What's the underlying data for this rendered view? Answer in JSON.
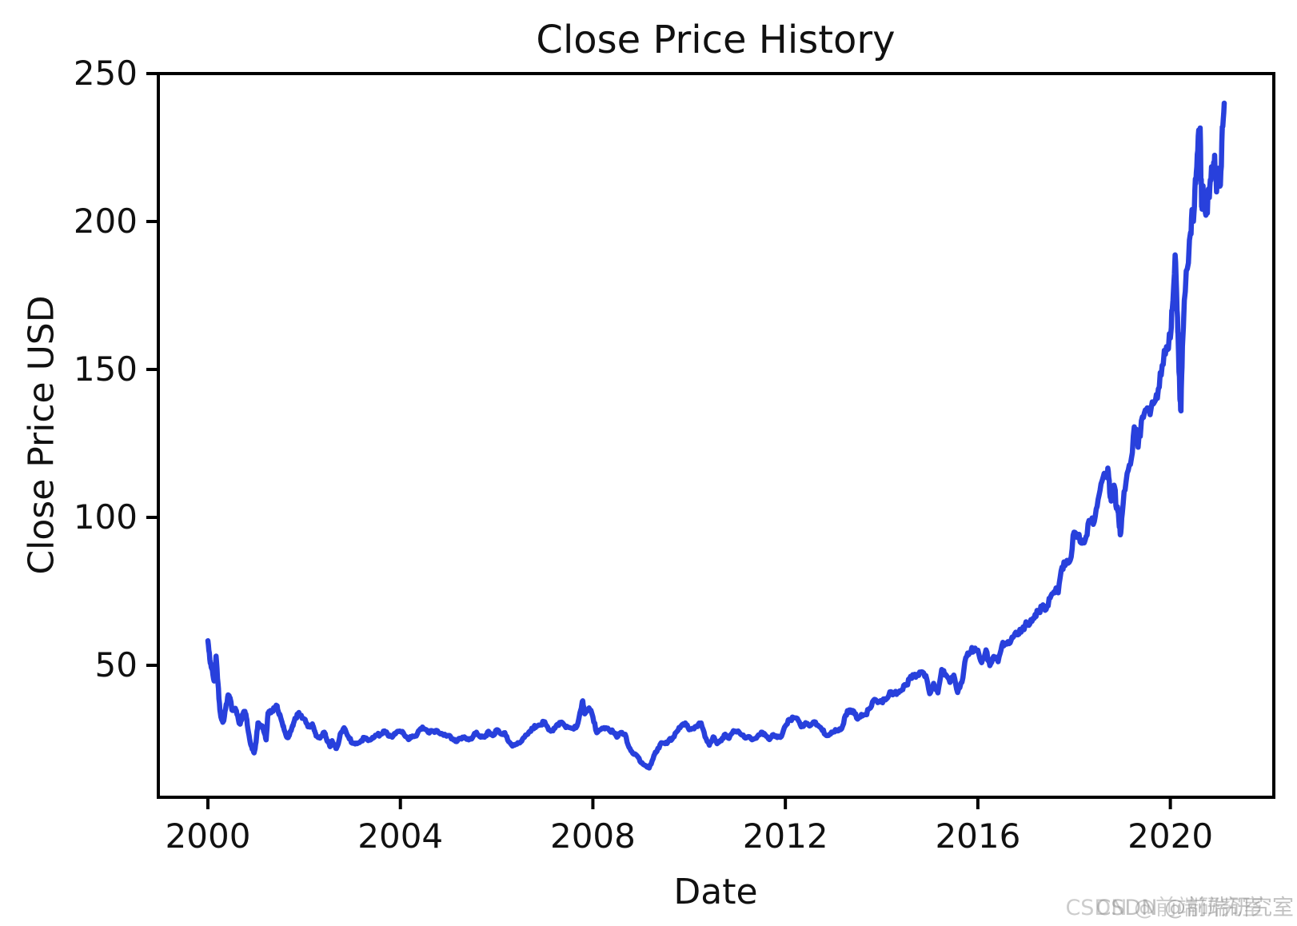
{
  "watermark": {
    "text": "CSDN @前端研究室"
  },
  "chart_data": {
    "type": "line",
    "title": "Close Price History",
    "xlabel": "Date",
    "ylabel": "Close Price USD",
    "x_ticks": [
      2000,
      2004,
      2008,
      2012,
      2016,
      2020
    ],
    "y_ticks": [
      50,
      100,
      150,
      200,
      250
    ],
    "xlim": [
      1998.97,
      2022.15
    ],
    "ylim": [
      5.4,
      250
    ],
    "grid": false,
    "legend": "none",
    "line_color": "#2840dc",
    "axis_color": "#000000",
    "series": [
      {
        "name": "Close Price USD",
        "x_unit": "decimal_year",
        "points": [
          [
            2000.0,
            58.3
          ],
          [
            2000.04,
            52.0
          ],
          [
            2000.08,
            48.9
          ],
          [
            2000.13,
            44.7
          ],
          [
            2000.17,
            53.1
          ],
          [
            2000.21,
            44.0
          ],
          [
            2000.25,
            34.9
          ],
          [
            2000.29,
            31.5
          ],
          [
            2000.33,
            31.3
          ],
          [
            2000.38,
            36.8
          ],
          [
            2000.42,
            40.0
          ],
          [
            2000.46,
            39.0
          ],
          [
            2000.5,
            34.9
          ],
          [
            2000.54,
            35.3
          ],
          [
            2000.58,
            34.9
          ],
          [
            2000.63,
            32.0
          ],
          [
            2000.67,
            30.1
          ],
          [
            2000.71,
            32.5
          ],
          [
            2000.75,
            34.4
          ],
          [
            2000.79,
            33.5
          ],
          [
            2000.83,
            28.7
          ],
          [
            2000.88,
            24.0
          ],
          [
            2000.92,
            21.7
          ],
          [
            2000.96,
            20.4
          ],
          [
            2001.0,
            24.0
          ],
          [
            2001.04,
            30.5
          ],
          [
            2001.08,
            29.4
          ],
          [
            2001.13,
            29.5
          ],
          [
            2001.17,
            27.3
          ],
          [
            2001.21,
            24.8
          ],
          [
            2001.25,
            33.9
          ],
          [
            2001.29,
            34.2
          ],
          [
            2001.33,
            34.6
          ],
          [
            2001.38,
            35.7
          ],
          [
            2001.42,
            36.5
          ],
          [
            2001.46,
            34.5
          ],
          [
            2001.5,
            33.1
          ],
          [
            2001.54,
            30.8
          ],
          [
            2001.58,
            28.5
          ],
          [
            2001.63,
            26.0
          ],
          [
            2001.67,
            25.6
          ],
          [
            2001.71,
            27.6
          ],
          [
            2001.75,
            29.1
          ],
          [
            2001.79,
            30.9
          ],
          [
            2001.83,
            32.1
          ],
          [
            2001.88,
            33.8
          ],
          [
            2001.92,
            33.1
          ],
          [
            2002.0,
            31.9
          ],
          [
            2002.08,
            29.2
          ],
          [
            2002.17,
            30.2
          ],
          [
            2002.21,
            28.0
          ],
          [
            2002.25,
            26.1
          ],
          [
            2002.33,
            25.4
          ],
          [
            2002.42,
            27.4
          ],
          [
            2002.46,
            25.5
          ],
          [
            2002.5,
            24.0
          ],
          [
            2002.54,
            22.5
          ],
          [
            2002.58,
            24.5
          ],
          [
            2002.63,
            22.8
          ],
          [
            2002.67,
            21.9
          ],
          [
            2002.71,
            23.5
          ],
          [
            2002.75,
            26.8
          ],
          [
            2002.83,
            28.9
          ],
          [
            2002.92,
            25.9
          ],
          [
            2003.0,
            23.7
          ],
          [
            2003.08,
            23.7
          ],
          [
            2003.17,
            24.2
          ],
          [
            2003.25,
            25.6
          ],
          [
            2003.33,
            24.6
          ],
          [
            2003.42,
            25.6
          ],
          [
            2003.5,
            26.4
          ],
          [
            2003.58,
            26.5
          ],
          [
            2003.67,
            27.8
          ],
          [
            2003.75,
            26.1
          ],
          [
            2003.83,
            25.7
          ],
          [
            2003.92,
            27.4
          ],
          [
            2004.0,
            27.7
          ],
          [
            2004.08,
            26.5
          ],
          [
            2004.17,
            24.9
          ],
          [
            2004.25,
            26.1
          ],
          [
            2004.33,
            26.1
          ],
          [
            2004.42,
            28.6
          ],
          [
            2004.5,
            28.5
          ],
          [
            2004.58,
            27.3
          ],
          [
            2004.67,
            27.7
          ],
          [
            2004.75,
            28.0
          ],
          [
            2004.83,
            26.8
          ],
          [
            2004.92,
            26.7
          ],
          [
            2005.0,
            26.3
          ],
          [
            2005.08,
            25.2
          ],
          [
            2005.17,
            24.2
          ],
          [
            2005.25,
            25.3
          ],
          [
            2005.33,
            25.8
          ],
          [
            2005.42,
            24.8
          ],
          [
            2005.5,
            25.6
          ],
          [
            2005.58,
            27.4
          ],
          [
            2005.67,
            25.7
          ],
          [
            2005.75,
            25.7
          ],
          [
            2005.83,
            27.7
          ],
          [
            2005.92,
            26.2
          ],
          [
            2006.0,
            28.2
          ],
          [
            2006.08,
            26.9
          ],
          [
            2006.17,
            27.2
          ],
          [
            2006.25,
            24.2
          ],
          [
            2006.33,
            22.7
          ],
          [
            2006.42,
            23.3
          ],
          [
            2006.5,
            24.1
          ],
          [
            2006.58,
            25.7
          ],
          [
            2006.67,
            27.4
          ],
          [
            2006.75,
            28.7
          ],
          [
            2006.83,
            29.4
          ],
          [
            2006.92,
            29.9
          ],
          [
            2007.0,
            30.9
          ],
          [
            2007.08,
            28.2
          ],
          [
            2007.17,
            27.9
          ],
          [
            2007.25,
            29.9
          ],
          [
            2007.33,
            30.7
          ],
          [
            2007.42,
            29.5
          ],
          [
            2007.5,
            29.0
          ],
          [
            2007.58,
            28.7
          ],
          [
            2007.67,
            29.5
          ],
          [
            2007.75,
            35.0
          ],
          [
            2007.79,
            38.0
          ],
          [
            2007.83,
            33.6
          ],
          [
            2007.92,
            35.6
          ],
          [
            2008.0,
            32.6
          ],
          [
            2008.08,
            27.2
          ],
          [
            2008.17,
            28.4
          ],
          [
            2008.25,
            28.5
          ],
          [
            2008.33,
            28.3
          ],
          [
            2008.42,
            27.5
          ],
          [
            2008.5,
            25.7
          ],
          [
            2008.58,
            27.3
          ],
          [
            2008.67,
            26.7
          ],
          [
            2008.75,
            22.3
          ],
          [
            2008.83,
            20.2
          ],
          [
            2008.92,
            19.4
          ],
          [
            2009.0,
            17.1
          ],
          [
            2009.08,
            16.2
          ],
          [
            2009.17,
            15.3
          ],
          [
            2009.25,
            18.4
          ],
          [
            2009.29,
            20.3
          ],
          [
            2009.33,
            20.9
          ],
          [
            2009.42,
            23.8
          ],
          [
            2009.5,
            23.5
          ],
          [
            2009.58,
            24.7
          ],
          [
            2009.67,
            25.7
          ],
          [
            2009.75,
            27.7
          ],
          [
            2009.83,
            29.4
          ],
          [
            2009.92,
            30.5
          ],
          [
            2010.0,
            28.2
          ],
          [
            2010.08,
            28.7
          ],
          [
            2010.17,
            29.3
          ],
          [
            2010.25,
            30.5
          ],
          [
            2010.33,
            25.8
          ],
          [
            2010.42,
            23.0
          ],
          [
            2010.5,
            25.8
          ],
          [
            2010.58,
            23.5
          ],
          [
            2010.67,
            24.5
          ],
          [
            2010.75,
            26.7
          ],
          [
            2010.83,
            25.3
          ],
          [
            2010.92,
            27.9
          ],
          [
            2011.0,
            27.7
          ],
          [
            2011.08,
            26.6
          ],
          [
            2011.17,
            25.4
          ],
          [
            2011.25,
            25.9
          ],
          [
            2011.33,
            25.0
          ],
          [
            2011.42,
            26.0
          ],
          [
            2011.5,
            27.4
          ],
          [
            2011.58,
            26.6
          ],
          [
            2011.67,
            24.9
          ],
          [
            2011.75,
            26.6
          ],
          [
            2011.83,
            25.6
          ],
          [
            2011.92,
            26.0
          ],
          [
            2012.0,
            29.5
          ],
          [
            2012.08,
            31.7
          ],
          [
            2012.17,
            32.3
          ],
          [
            2012.25,
            32.0
          ],
          [
            2012.33,
            29.2
          ],
          [
            2012.42,
            30.6
          ],
          [
            2012.5,
            29.5
          ],
          [
            2012.58,
            30.8
          ],
          [
            2012.67,
            29.8
          ],
          [
            2012.75,
            28.5
          ],
          [
            2012.83,
            26.6
          ],
          [
            2012.92,
            26.7
          ],
          [
            2013.0,
            27.5
          ],
          [
            2013.08,
            27.8
          ],
          [
            2013.17,
            28.6
          ],
          [
            2013.25,
            33.1
          ],
          [
            2013.33,
            34.9
          ],
          [
            2013.42,
            34.5
          ],
          [
            2013.5,
            31.8
          ],
          [
            2013.58,
            33.4
          ],
          [
            2013.67,
            33.3
          ],
          [
            2013.75,
            35.4
          ],
          [
            2013.83,
            38.1
          ],
          [
            2013.92,
            37.4
          ],
          [
            2014.0,
            37.8
          ],
          [
            2014.08,
            38.3
          ],
          [
            2014.17,
            41.0
          ],
          [
            2014.25,
            40.4
          ],
          [
            2014.33,
            40.9
          ],
          [
            2014.42,
            41.7
          ],
          [
            2014.5,
            43.2
          ],
          [
            2014.58,
            45.4
          ],
          [
            2014.67,
            46.4
          ],
          [
            2014.75,
            47.0
          ],
          [
            2014.83,
            47.8
          ],
          [
            2014.92,
            46.5
          ],
          [
            2015.0,
            40.4
          ],
          [
            2015.08,
            43.9
          ],
          [
            2015.17,
            40.7
          ],
          [
            2015.25,
            48.6
          ],
          [
            2015.33,
            46.9
          ],
          [
            2015.42,
            44.2
          ],
          [
            2015.5,
            46.7
          ],
          [
            2015.58,
            40.8
          ],
          [
            2015.67,
            44.3
          ],
          [
            2015.75,
            52.6
          ],
          [
            2015.83,
            54.3
          ],
          [
            2015.92,
            55.5
          ],
          [
            2016.0,
            55.1
          ],
          [
            2016.08,
            50.9
          ],
          [
            2016.17,
            55.2
          ],
          [
            2016.25,
            49.9
          ],
          [
            2016.33,
            53.0
          ],
          [
            2016.42,
            51.2
          ],
          [
            2016.5,
            56.7
          ],
          [
            2016.58,
            57.5
          ],
          [
            2016.67,
            57.6
          ],
          [
            2016.75,
            59.9
          ],
          [
            2016.83,
            60.3
          ],
          [
            2016.92,
            62.1
          ],
          [
            2017.0,
            64.7
          ],
          [
            2017.08,
            64.0
          ],
          [
            2017.17,
            65.9
          ],
          [
            2017.25,
            68.5
          ],
          [
            2017.33,
            69.8
          ],
          [
            2017.42,
            68.9
          ],
          [
            2017.5,
            72.7
          ],
          [
            2017.58,
            74.8
          ],
          [
            2017.67,
            74.5
          ],
          [
            2017.75,
            83.2
          ],
          [
            2017.83,
            84.2
          ],
          [
            2017.92,
            85.5
          ],
          [
            2018.0,
            95.0
          ],
          [
            2018.08,
            93.8
          ],
          [
            2018.17,
            91.3
          ],
          [
            2018.25,
            93.5
          ],
          [
            2018.33,
            98.8
          ],
          [
            2018.42,
            98.6
          ],
          [
            2018.5,
            106.1
          ],
          [
            2018.58,
            112.3
          ],
          [
            2018.67,
            114.4
          ],
          [
            2018.71,
            115.6
          ],
          [
            2018.75,
            106.8
          ],
          [
            2018.79,
            108.3
          ],
          [
            2018.83,
            110.9
          ],
          [
            2018.88,
            103.0
          ],
          [
            2018.92,
            101.6
          ],
          [
            2018.96,
            94.1
          ],
          [
            2019.0,
            101.1
          ],
          [
            2019.08,
            112.0
          ],
          [
            2019.17,
            117.9
          ],
          [
            2019.25,
            130.6
          ],
          [
            2019.33,
            123.7
          ],
          [
            2019.42,
            134.0
          ],
          [
            2019.5,
            136.3
          ],
          [
            2019.58,
            134.7
          ],
          [
            2019.67,
            139.0
          ],
          [
            2019.75,
            143.4
          ],
          [
            2019.83,
            151.4
          ],
          [
            2019.92,
            157.7
          ],
          [
            2020.0,
            160.6
          ],
          [
            2020.04,
            170.2
          ],
          [
            2020.1,
            188.7
          ],
          [
            2020.14,
            170.0
          ],
          [
            2020.16,
            162.0
          ],
          [
            2020.2,
            140.0
          ],
          [
            2020.22,
            136.0
          ],
          [
            2020.25,
            157.7
          ],
          [
            2020.33,
            183.3
          ],
          [
            2020.42,
            196.3
          ],
          [
            2020.46,
            203.5
          ],
          [
            2020.5,
            205.0
          ],
          [
            2020.54,
            216.5
          ],
          [
            2020.58,
            228.9
          ],
          [
            2020.62,
            231.6
          ],
          [
            2020.65,
            205.0
          ],
          [
            2020.67,
            210.3
          ],
          [
            2020.71,
            205.0
          ],
          [
            2020.75,
            202.5
          ],
          [
            2020.79,
            211.0
          ],
          [
            2020.83,
            214.1
          ],
          [
            2020.88,
            215.0
          ],
          [
            2020.92,
            222.4
          ],
          [
            2020.96,
            210.0
          ],
          [
            2021.0,
            218.0
          ],
          [
            2021.04,
            212.3
          ],
          [
            2021.08,
            232.0
          ],
          [
            2021.12,
            240.0
          ]
        ]
      }
    ],
    "render_hints": {
      "noise_pct": 0.022,
      "substeps": 4,
      "seed": 42,
      "line_width": 6.5
    }
  }
}
